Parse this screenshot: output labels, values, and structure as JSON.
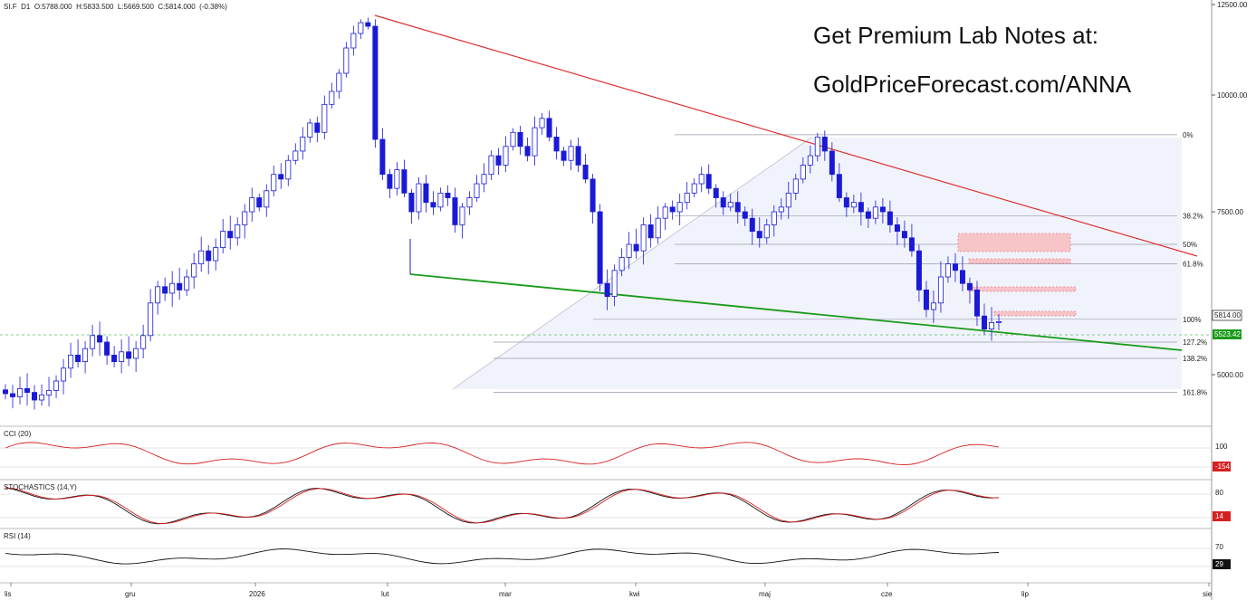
{
  "header": {
    "symbol": "SI.F",
    "interval": "D1",
    "ohlc": "O:5788.000  H:5833.500  L:5669.500  C:5814.000  (-0.38%)"
  },
  "promo": {
    "line1": "Get Premium Lab Notes at:",
    "line2": "GoldPriceForecast.com/ANNA"
  },
  "panels": {
    "cci_label": "CCI (20)",
    "stoch_label": "STOCHASTICS (14,Y)",
    "rsi_label": "RSI (14)"
  },
  "colors": {
    "bull": "#ffffff",
    "bear": "#1a1ad6",
    "resistance": "#e03030",
    "support": "#1a9a1a",
    "zone": "#f7c4c8",
    "oscillator_red": "#d62020",
    "oscillator_black": "#111111",
    "fib_fill": "#eef0fb"
  },
  "chart_data": [
    {
      "type": "candlestick",
      "title": "SI.F D1",
      "y_ticks": [
        "12500.00",
        "10000.00",
        "7500.00",
        "5000.00"
      ],
      "ylim": [
        4200,
        12500
      ],
      "x_ticks": [
        "lis",
        "gru",
        "2026",
        "lut",
        "mar",
        "kwi",
        "maj",
        "cze",
        "lip",
        "sie"
      ],
      "last_price": "5814.00",
      "marker_price": "5523.42",
      "fibonacci_levels": [
        "0%",
        "38.2%",
        "50%",
        "61.8%",
        "100%",
        "127.2%",
        "138.2%",
        "161.8%"
      ],
      "fib_values": [
        9150,
        7440,
        7000,
        6700,
        5850,
        5500,
        5250,
        4720
      ],
      "closes": [
        4700,
        4650,
        4780,
        4720,
        4600,
        4680,
        4750,
        4900,
        5100,
        5300,
        5200,
        5400,
        5600,
        5500,
        5300,
        5200,
        5350,
        5250,
        5400,
        5600,
        6100,
        6350,
        6250,
        6400,
        6300,
        6500,
        6700,
        6900,
        6750,
        6950,
        7200,
        7100,
        7300,
        7500,
        7800,
        7600,
        7950,
        8300,
        8200,
        8600,
        8800,
        9100,
        9400,
        9200,
        9800,
        10100,
        10600,
        11300,
        11700,
        12000,
        11900,
        9050,
        8300,
        8000,
        8400,
        7900,
        7500,
        8100,
        7700,
        7600,
        7900,
        7800,
        7300,
        7600,
        7800,
        8100,
        8300,
        8700,
        8500,
        8900,
        9200,
        8900,
        8700,
        9300,
        9500,
        9100,
        8800,
        8600,
        8900,
        8500,
        8200,
        7500,
        6400,
        6200,
        6600,
        6800,
        7000,
        6900,
        7300,
        7100,
        7400,
        7600,
        7500,
        7700,
        7900,
        8100,
        8300,
        8000,
        7800,
        7600,
        7700,
        7500,
        7400,
        7200,
        7100,
        7300,
        7500,
        7600,
        7900,
        8200,
        8500,
        8700,
        9100,
        8800,
        8300,
        7800,
        7600,
        7700,
        7500,
        7400,
        7600,
        7500,
        7300,
        7200,
        7100,
        6900,
        6300,
        6000,
        6100,
        6500,
        6700,
        6600,
        6400,
        6300,
        5900,
        5700,
        5800,
        5814
      ],
      "series": [
        {
          "name": "CCI (20)",
          "ticks": [
            "100",
            "-154"
          ]
        },
        {
          "name": "STOCHASTICS (14,Y)",
          "ticks": [
            "80",
            "14"
          ]
        },
        {
          "name": "RSI (14)",
          "ticks": [
            "70",
            "29"
          ]
        }
      ]
    }
  ]
}
